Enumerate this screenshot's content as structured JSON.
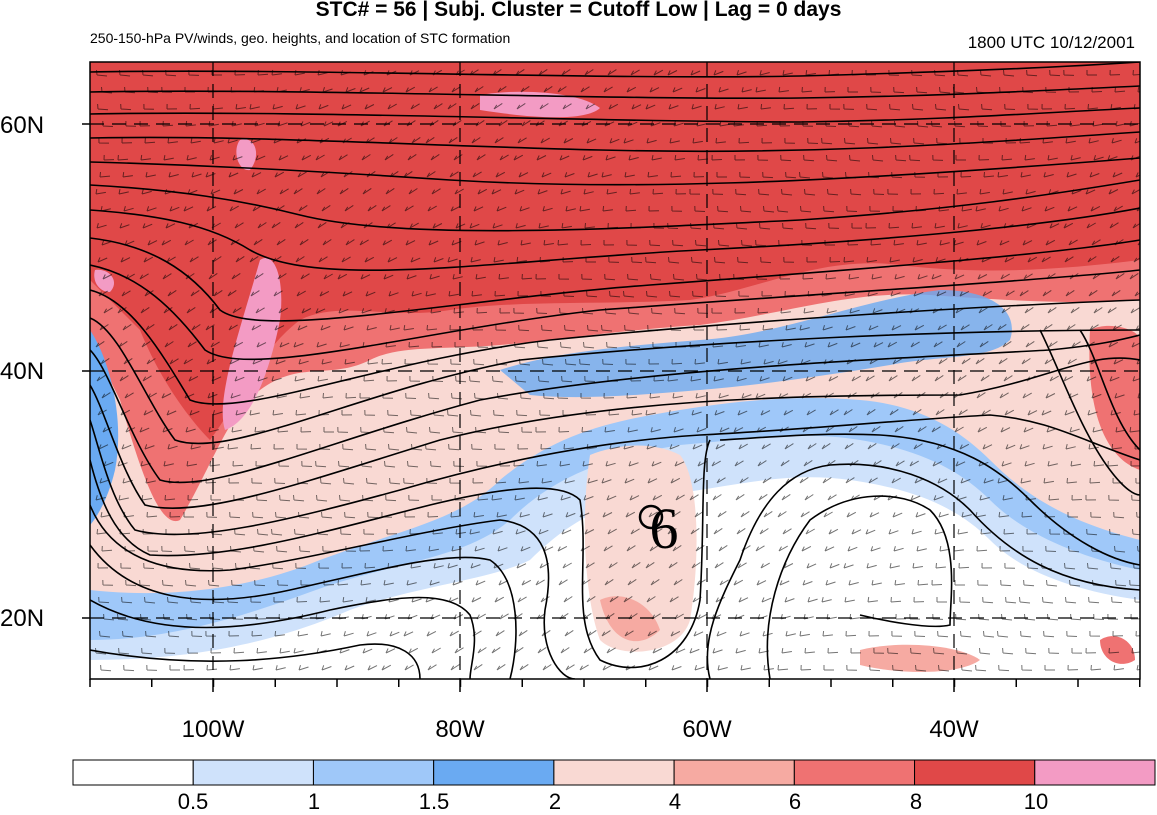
{
  "header": {
    "title": "STC# = 56 | Subj. Cluster = Cutoff Low | Lag = 0 days",
    "subtitle": "250-150-hPa PV/winds, geo. heights, and location of STC formation",
    "timestamp": "1800 UTC  10/12/2001"
  },
  "axes": {
    "lat_labels": [
      "60N",
      "40N",
      "20N"
    ],
    "lon_labels": [
      "100W",
      "80W",
      "60W",
      "40W"
    ]
  },
  "marker": {
    "label": "6",
    "icon": "tropical-cyclone-symbol"
  },
  "colorbar": {
    "labels": [
      "0.5",
      "1",
      "1.5",
      "2",
      "4",
      "6",
      "8",
      "10"
    ],
    "colors": [
      "#ffffff",
      "#cfe2fb",
      "#9fc8f9",
      "#6aaaf2",
      "#f9d9d3",
      "#f6aaa2",
      "#ef7272",
      "#e04848",
      "#f39bc4"
    ]
  },
  "map": {
    "lon_range": [
      "110W",
      "25W"
    ],
    "lat_range": [
      "15N",
      "65N"
    ],
    "storm_location": {
      "lon": "65W",
      "lat": "29N"
    }
  }
}
